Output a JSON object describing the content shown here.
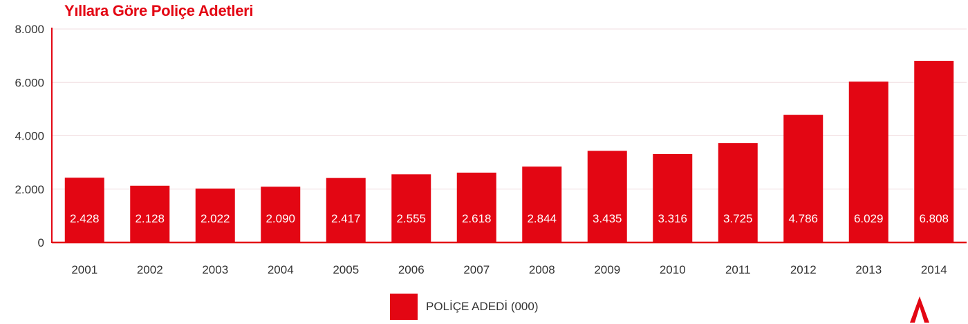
{
  "colors": {
    "bar": "#e30613",
    "title": "#e30613",
    "axis": "#e30613",
    "grid": "#f1dde0",
    "text": "#333333"
  },
  "legend": {
    "label": "POLİÇE ADEDİ (000)"
  },
  "logo": {
    "icon": "logo-icon",
    "color": "#e30613"
  },
  "chart_data": {
    "type": "bar",
    "title": "Yıllara Göre Poliçe Adetleri",
    "xlabel": "",
    "ylabel": "",
    "ylim": [
      0,
      8000
    ],
    "yticks": [
      0,
      2000,
      4000,
      6000,
      8000
    ],
    "ytick_labels": [
      "0",
      "2.000",
      "4.000",
      "6.000",
      "8.000"
    ],
    "grid": true,
    "legend_position": "bottom-center",
    "categories": [
      "2001",
      "2002",
      "2003",
      "2004",
      "2005",
      "2006",
      "2007",
      "2008",
      "2009",
      "2010",
      "2011",
      "2012",
      "2013",
      "2014"
    ],
    "series": [
      {
        "name": "POLİÇE ADEDİ (000)",
        "values": [
          2428,
          2128,
          2022,
          2090,
          2417,
          2555,
          2618,
          2844,
          3435,
          3316,
          3725,
          4786,
          6029,
          6808
        ],
        "labels": [
          "2.428",
          "2.128",
          "2.022",
          "2.090",
          "2.417",
          "2.555",
          "2.618",
          "2.844",
          "3.435",
          "3.316",
          "3.725",
          "4.786",
          "6.029",
          "6.808"
        ]
      }
    ]
  }
}
